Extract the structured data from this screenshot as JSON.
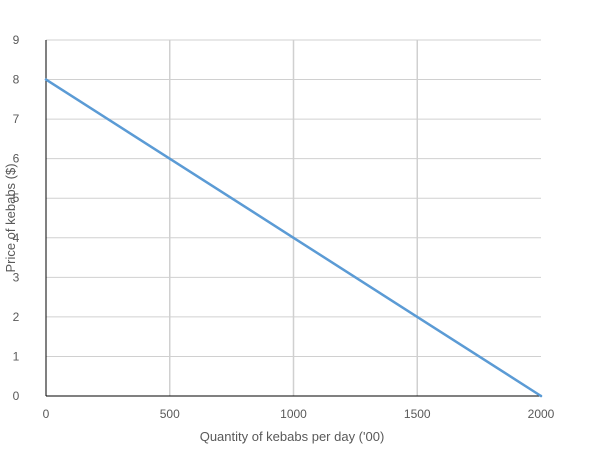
{
  "chart_data": {
    "type": "line",
    "title": "",
    "xlabel": "Quantity of kebabs per day ('00)",
    "ylabel": "Price of kebabs ($)",
    "xlim": [
      0,
      2000
    ],
    "ylim": [
      0,
      9
    ],
    "x_ticks": [
      0,
      500,
      1000,
      1500,
      2000
    ],
    "y_ticks": [
      0,
      1,
      2,
      3,
      4,
      5,
      6,
      7,
      8,
      9
    ],
    "grid": true,
    "legend": "none",
    "series": [
      {
        "x": [
          0,
          500,
          1000,
          1500,
          2000
        ],
        "y": [
          8,
          6,
          4,
          2,
          0
        ],
        "color": "#5b9bd5"
      }
    ],
    "colors": {
      "grid": "#d0d0d0",
      "axis": "#000000",
      "text": "#595959"
    }
  }
}
